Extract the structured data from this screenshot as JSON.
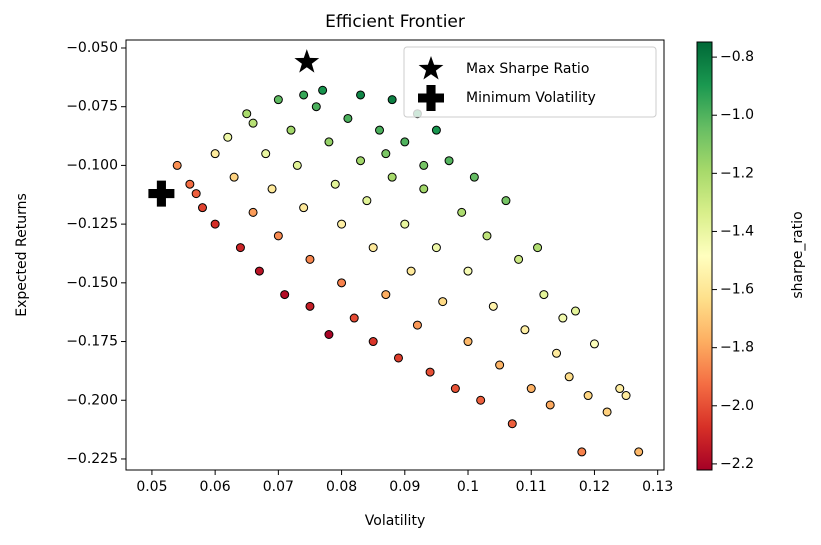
{
  "chart_data": {
    "type": "scatter",
    "title": "Efficient Frontier",
    "x_label": "Volatility",
    "y_label": "Expected Returns",
    "xlim": [
      0.0459,
      0.131
    ],
    "xticks": [
      0.05,
      0.06,
      0.07,
      0.08,
      0.09,
      0.1,
      0.11,
      0.12,
      0.13
    ],
    "ylim": [
      -0.2297,
      -0.0466
    ],
    "yticks": [
      {
        "value": -0.05,
        "label": "−0.050"
      },
      {
        "value": -0.075,
        "label": "−0.075"
      },
      {
        "value": -0.1,
        "label": "−0.100"
      },
      {
        "value": -0.125,
        "label": "−0.125"
      },
      {
        "value": -0.15,
        "label": "−0.150"
      },
      {
        "value": -0.175,
        "label": "−0.175"
      },
      {
        "value": -0.2,
        "label": "−0.200"
      },
      {
        "value": -0.225,
        "label": "−0.225"
      }
    ],
    "x": [
      0.054,
      0.056,
      0.057,
      0.058,
      0.06,
      0.06,
      0.062,
      0.063,
      0.064,
      0.065,
      0.066,
      0.067,
      0.068,
      0.069,
      0.07,
      0.07,
      0.071,
      0.072,
      0.073,
      0.074,
      0.075,
      0.075,
      0.076,
      0.077,
      0.078,
      0.078,
      0.079,
      0.08,
      0.08,
      0.081,
      0.082,
      0.083,
      0.083,
      0.084,
      0.085,
      0.085,
      0.086,
      0.087,
      0.088,
      0.088,
      0.089,
      0.09,
      0.09,
      0.091,
      0.092,
      0.092,
      0.093,
      0.094,
      0.095,
      0.095,
      0.096,
      0.097,
      0.098,
      0.099,
      0.1,
      0.1,
      0.101,
      0.102,
      0.103,
      0.104,
      0.105,
      0.106,
      0.107,
      0.108,
      0.109,
      0.11,
      0.111,
      0.112,
      0.113,
      0.114,
      0.115,
      0.116,
      0.117,
      0.118,
      0.119,
      0.12,
      0.122,
      0.124,
      0.125,
      0.127,
      0.087,
      0.093,
      0.066,
      0.074
    ],
    "values": [
      -0.1,
      -0.108,
      -0.112,
      -0.118,
      -0.125,
      -0.095,
      -0.088,
      -0.105,
      -0.135,
      -0.078,
      -0.12,
      -0.145,
      -0.095,
      -0.11,
      -0.072,
      -0.13,
      -0.155,
      -0.085,
      -0.1,
      -0.118,
      -0.14,
      -0.16,
      -0.075,
      -0.068,
      -0.09,
      -0.172,
      -0.108,
      -0.125,
      -0.15,
      -0.08,
      -0.165,
      -0.07,
      -0.098,
      -0.115,
      -0.135,
      -0.175,
      -0.085,
      -0.155,
      -0.072,
      -0.105,
      -0.182,
      -0.125,
      -0.09,
      -0.145,
      -0.078,
      -0.168,
      -0.11,
      -0.188,
      -0.085,
      -0.135,
      -0.158,
      -0.098,
      -0.195,
      -0.12,
      -0.175,
      -0.145,
      -0.105,
      -0.2,
      -0.13,
      -0.16,
      -0.185,
      -0.115,
      -0.21,
      -0.14,
      -0.17,
      -0.195,
      -0.135,
      -0.155,
      -0.202,
      -0.18,
      -0.165,
      -0.19,
      -0.162,
      -0.222,
      -0.198,
      -0.176,
      -0.205,
      -0.195,
      -0.198,
      -0.222,
      -0.095,
      -0.1,
      -0.082,
      -0.07
    ],
    "color_values": [
      -1.85,
      -1.93,
      -1.96,
      -2.03,
      -2.08,
      -1.58,
      -1.42,
      -1.67,
      -2.11,
      -1.2,
      -1.82,
      -2.16,
      -1.4,
      -1.59,
      -1.03,
      -1.86,
      -2.18,
      -1.18,
      -1.37,
      -1.59,
      -1.87,
      -2.13,
      -0.99,
      -0.88,
      -1.15,
      -2.21,
      -1.37,
      -1.56,
      -1.88,
      -0.99,
      -2.01,
      -0.84,
      -1.18,
      -1.37,
      -1.59,
      -2.06,
      -0.99,
      -1.78,
      -0.82,
      -1.19,
      -2.04,
      -1.39,
      -1.0,
      -1.59,
      -0.85,
      -1.83,
      -1.18,
      -2.0,
      -0.89,
      -1.42,
      -1.65,
      -1.01,
      -1.99,
      -1.21,
      -1.75,
      -1.45,
      -1.04,
      -1.96,
      -1.26,
      -1.54,
      -1.76,
      -1.08,
      -1.96,
      -1.3,
      -1.56,
      -1.77,
      -1.22,
      -1.38,
      -1.79,
      -1.58,
      -1.43,
      -1.64,
      -1.38,
      -1.88,
      -1.66,
      -1.47,
      -1.68,
      -1.57,
      -1.58,
      -1.75,
      -1.09,
      -1.08,
      -1.24,
      -0.95
    ],
    "colormap": "RdYlGn",
    "colorbar": {
      "label": "sharpe_ratio",
      "lim": [
        -2.221,
        -0.748
      ],
      "ticks": [
        {
          "value": -0.8,
          "label": "−0.8"
        },
        {
          "value": -1.0,
          "label": "−1.0"
        },
        {
          "value": -1.2,
          "label": "−1.2"
        },
        {
          "value": -1.4,
          "label": "−1.4"
        },
        {
          "value": -1.6,
          "label": "−1.6"
        },
        {
          "value": -1.8,
          "label": "−1.8"
        },
        {
          "value": -2.0,
          "label": "−2.0"
        },
        {
          "value": -2.2,
          "label": "−2.2"
        }
      ]
    },
    "markers": [
      {
        "name": "Max Sharpe Ratio",
        "x": 0.0745,
        "y": -0.056,
        "symbol": "star",
        "color": "#000000"
      },
      {
        "name": "Minimum Volatility",
        "x": 0.0515,
        "y": -0.112,
        "symbol": "plus",
        "color": "#000000"
      }
    ],
    "legend": "upper right",
    "grid": false
  }
}
